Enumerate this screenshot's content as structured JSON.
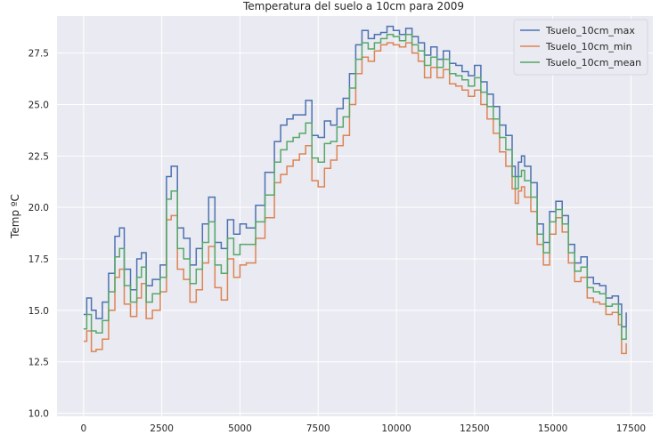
{
  "chart_data": {
    "type": "line",
    "title": "Temperatura del suelo a 10cm para 2009",
    "xlabel": "",
    "ylabel": "Temp ºC",
    "xlim": [
      -850,
      18200
    ],
    "ylim": [
      9.85,
      29.3
    ],
    "xticks": [
      0,
      2500,
      5000,
      7500,
      10000,
      12500,
      15000,
      17500
    ],
    "xtick_labels": [
      "0",
      "2500",
      "5000",
      "7500",
      "10000",
      "12500",
      "15000",
      "17500"
    ],
    "yticks": [
      10.0,
      12.5,
      15.0,
      17.5,
      20.0,
      22.5,
      25.0,
      27.5
    ],
    "ytick_labels": [
      "10.0",
      "12.5",
      "15.0",
      "17.5",
      "20.0",
      "22.5",
      "25.0",
      "27.5"
    ],
    "grid": true,
    "legend_position": "top-right",
    "background": "#eaeaf2",
    "series": [
      {
        "name": "Tsuelo_10cm_max",
        "color": "#4c72b0",
        "x": [
          0,
          100,
          250,
          400,
          600,
          800,
          1000,
          1150,
          1300,
          1500,
          1700,
          1850,
          2000,
          2200,
          2450,
          2650,
          2800,
          3000,
          3200,
          3400,
          3600,
          3800,
          4000,
          4200,
          4400,
          4600,
          4800,
          5000,
          5200,
          5500,
          5800,
          6100,
          6300,
          6500,
          6700,
          6900,
          7100,
          7300,
          7500,
          7700,
          7900,
          8100,
          8300,
          8500,
          8700,
          8900,
          9100,
          9300,
          9500,
          9700,
          9900,
          10100,
          10300,
          10500,
          10700,
          10900,
          11100,
          11300,
          11500,
          11700,
          11900,
          12100,
          12300,
          12500,
          12700,
          12900,
          13100,
          13300,
          13500,
          13700,
          13800,
          13900,
          14000,
          14100,
          14300,
          14500,
          14700,
          14900,
          15100,
          15300,
          15500,
          15700,
          15900,
          16100,
          16300,
          16500,
          16700,
          16900,
          17100,
          17200,
          17350
        ],
        "values": [
          14.8,
          15.6,
          15.0,
          14.6,
          15.4,
          16.8,
          18.6,
          19.0,
          17.0,
          16.0,
          17.5,
          17.8,
          16.2,
          16.5,
          17.2,
          21.5,
          22.0,
          19.0,
          18.5,
          17.2,
          18.0,
          19.2,
          20.5,
          18.3,
          18.0,
          19.4,
          18.7,
          19.2,
          19.0,
          20.1,
          21.7,
          23.2,
          24.0,
          24.3,
          24.5,
          24.5,
          25.2,
          23.5,
          23.4,
          24.2,
          24.0,
          24.8,
          25.3,
          26.5,
          27.9,
          28.6,
          28.2,
          28.4,
          28.5,
          28.8,
          28.6,
          28.4,
          28.7,
          28.3,
          28.0,
          27.4,
          27.8,
          27.2,
          27.6,
          27.0,
          26.9,
          26.6,
          26.4,
          26.9,
          26.1,
          25.5,
          24.9,
          24.0,
          23.5,
          22.0,
          21.5,
          22.2,
          22.5,
          22.0,
          21.2,
          19.2,
          18.3,
          19.8,
          20.3,
          19.6,
          18.2,
          17.3,
          17.6,
          16.6,
          16.3,
          16.2,
          15.6,
          15.7,
          15.3,
          14.2,
          14.9
        ]
      },
      {
        "name": "Tsuelo_10cm_min",
        "color": "#dd8452",
        "x": [
          0,
          100,
          250,
          400,
          600,
          800,
          1000,
          1150,
          1300,
          1500,
          1700,
          1850,
          2000,
          2200,
          2450,
          2650,
          2800,
          3000,
          3200,
          3400,
          3600,
          3800,
          4000,
          4200,
          4400,
          4600,
          4800,
          5000,
          5200,
          5500,
          5800,
          6100,
          6300,
          6500,
          6700,
          6900,
          7100,
          7300,
          7500,
          7700,
          7900,
          8100,
          8300,
          8500,
          8700,
          8900,
          9100,
          9300,
          9500,
          9700,
          9900,
          10100,
          10300,
          10500,
          10700,
          10900,
          11100,
          11300,
          11500,
          11700,
          11900,
          12100,
          12300,
          12500,
          12700,
          12900,
          13100,
          13300,
          13500,
          13700,
          13800,
          13900,
          14000,
          14100,
          14300,
          14500,
          14700,
          14900,
          15100,
          15300,
          15500,
          15700,
          15900,
          16100,
          16300,
          16500,
          16700,
          16900,
          17100,
          17200,
          17350
        ],
        "values": [
          13.5,
          14.0,
          13.0,
          13.1,
          13.6,
          15.0,
          16.6,
          17.0,
          15.3,
          14.7,
          15.6,
          16.3,
          14.6,
          15.0,
          15.9,
          19.4,
          19.6,
          17.0,
          16.5,
          15.4,
          16.0,
          17.3,
          18.1,
          16.1,
          15.5,
          17.5,
          16.6,
          17.2,
          17.3,
          18.5,
          19.5,
          21.2,
          21.6,
          22.0,
          22.3,
          22.6,
          23.0,
          21.3,
          21.0,
          21.9,
          22.3,
          23.0,
          23.5,
          25.0,
          26.5,
          27.3,
          27.1,
          27.6,
          27.9,
          28.0,
          27.9,
          27.8,
          28.0,
          27.5,
          27.1,
          26.3,
          26.8,
          26.3,
          26.7,
          26.0,
          25.9,
          25.7,
          25.4,
          25.7,
          25.0,
          24.3,
          23.6,
          22.7,
          22.0,
          20.9,
          20.2,
          20.8,
          21.0,
          20.5,
          19.8,
          18.2,
          17.2,
          18.7,
          19.5,
          18.8,
          17.3,
          16.4,
          16.6,
          15.6,
          15.4,
          15.3,
          14.8,
          14.9,
          14.3,
          12.9,
          13.4
        ]
      },
      {
        "name": "Tsuelo_10cm_mean",
        "color": "#55a868",
        "x": [
          0,
          100,
          250,
          400,
          600,
          800,
          1000,
          1150,
          1300,
          1500,
          1700,
          1850,
          2000,
          2200,
          2450,
          2650,
          2800,
          3000,
          3200,
          3400,
          3600,
          3800,
          4000,
          4200,
          4400,
          4600,
          4800,
          5000,
          5200,
          5500,
          5800,
          6100,
          6300,
          6500,
          6700,
          6900,
          7100,
          7300,
          7500,
          7700,
          7900,
          8100,
          8300,
          8500,
          8700,
          8900,
          9100,
          9300,
          9500,
          9700,
          9900,
          10100,
          10300,
          10500,
          10700,
          10900,
          11100,
          11300,
          11500,
          11700,
          11900,
          12100,
          12300,
          12500,
          12700,
          12900,
          13100,
          13300,
          13500,
          13700,
          13800,
          13900,
          14000,
          14100,
          14300,
          14500,
          14700,
          14900,
          15100,
          15300,
          15500,
          15700,
          15900,
          16100,
          16300,
          16500,
          16700,
          16900,
          17100,
          17200,
          17350
        ],
        "values": [
          14.1,
          14.8,
          14.0,
          13.9,
          14.5,
          15.9,
          17.6,
          18.0,
          16.2,
          15.4,
          16.6,
          17.1,
          15.4,
          15.8,
          16.6,
          20.4,
          20.8,
          18.0,
          17.5,
          16.3,
          17.0,
          18.3,
          19.3,
          17.2,
          16.8,
          18.5,
          17.7,
          18.2,
          18.2,
          19.3,
          20.6,
          22.2,
          22.8,
          23.2,
          23.4,
          23.6,
          24.1,
          22.4,
          22.2,
          23.1,
          23.2,
          23.9,
          24.4,
          25.8,
          27.2,
          28.0,
          27.7,
          28.0,
          28.2,
          28.4,
          28.3,
          28.1,
          28.4,
          27.9,
          27.6,
          26.9,
          27.3,
          26.8,
          27.2,
          26.5,
          26.4,
          26.2,
          25.9,
          26.3,
          25.6,
          24.9,
          24.3,
          23.4,
          22.8,
          21.5,
          20.9,
          21.5,
          21.8,
          21.3,
          20.5,
          18.7,
          17.8,
          19.3,
          19.9,
          19.2,
          17.8,
          16.9,
          17.1,
          16.1,
          15.9,
          15.8,
          15.2,
          15.3,
          14.8,
          13.6,
          14.2
        ]
      }
    ]
  }
}
